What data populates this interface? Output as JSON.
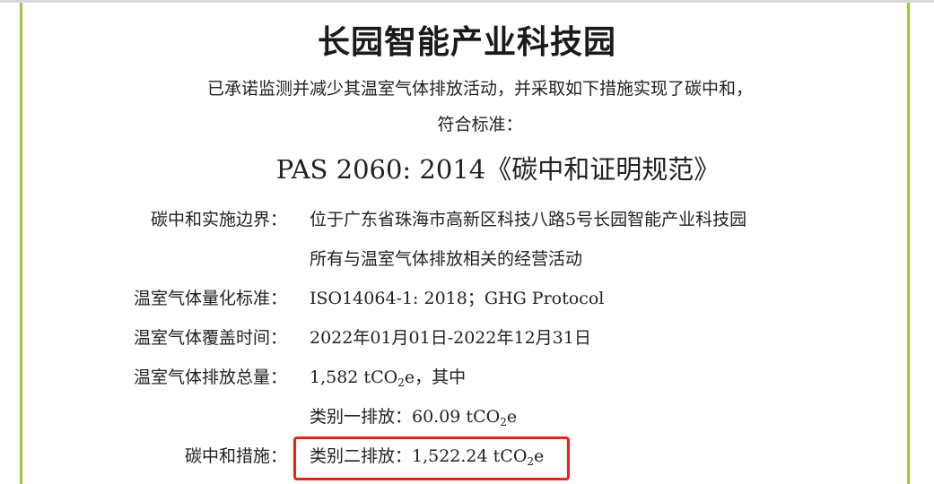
{
  "title": "长园智能产业科技园",
  "statement_line1": "已承诺监测并减少其温室气体排放活动，并采取如下措施实现了碳中和，",
  "statement_line2": "符合标准：",
  "standard": "PAS 2060: 2014《碳中和证明规范》",
  "rows": [
    {
      "label": "碳中和实施边界：",
      "value": "位于广东省珠海市高新区科技八路5号长园智能产业科技园"
    },
    {
      "label": "",
      "value": "所有与温室气体排放相关的经营活动"
    },
    {
      "label": "温室气体量化标准：",
      "value": "ISO14064-1: 2018；GHG Protocol"
    },
    {
      "label": "温室气体覆盖时间：",
      "value": "2022年01月01日-2022年12月31日"
    },
    {
      "label": "温室气体排放总量：",
      "value_pre": "1,582 tCO",
      "sub": "2",
      "value_post": "e，其中"
    },
    {
      "label": "",
      "value_pre": "类别一排放：60.09 tCO",
      "sub": "2",
      "value_post": "e"
    },
    {
      "label": "碳中和措施：",
      "value_pre": "类别二排放：1,522.24 tCO",
      "sub": "2",
      "value_post": "e"
    }
  ],
  "colors": {
    "border_green": "#9cc63d",
    "highlight_red": "#e8231c"
  }
}
